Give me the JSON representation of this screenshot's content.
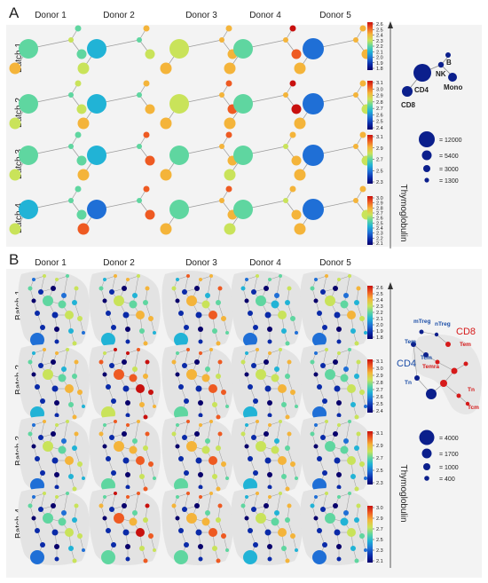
{
  "panelA": {
    "letter": "A",
    "donors": [
      "Donor 1",
      "Donor 2",
      "Donor 3",
      "Donor 4",
      "Donor 5"
    ],
    "batches": [
      "Batch 1",
      "Batch 2",
      "Batch 3",
      "Batch 4"
    ],
    "colorbar_ticks": [
      [
        "2.6",
        "2.5",
        "2.4",
        "2.3",
        "2.2",
        "2.1",
        "2.0",
        "1.9",
        "1.8"
      ],
      [
        "3.1",
        "3.0",
        "2.9",
        "2.8",
        "2.7",
        "2.6",
        "2.5",
        "2.4"
      ],
      [
        "3.1",
        "2.9",
        "2.7",
        "2.5",
        "2.3"
      ],
      [
        "3.0",
        "2.9",
        "2.8",
        "2.7",
        "2.6",
        "2.5",
        "2.4",
        "2.3",
        "2.2",
        "2.1"
      ]
    ],
    "legend_labels": {
      "b": "B",
      "nk": "NK",
      "cd4": "CD4",
      "cd8": "CD8",
      "mono": "Mono"
    },
    "size_legend": [
      "= 12000",
      "= 5400",
      "= 3000",
      "= 1300"
    ]
  },
  "panelB": {
    "letter": "B",
    "donors": [
      "Donor 1",
      "Donor 2",
      "Donor 3",
      "Donor 4",
      "Donor 5"
    ],
    "batches": [
      "Batch 1",
      "Batch 2",
      "Batch 3",
      "Batch 4"
    ],
    "colorbar_ticks": [
      [
        "2.6",
        "2.5",
        "2.4",
        "2.3",
        "2.2",
        "2.1",
        "2.0",
        "1.9",
        "1.8"
      ],
      [
        "3.1",
        "3.0",
        "2.9",
        "2.8",
        "2.7",
        "2.6",
        "2.5",
        "2.4"
      ],
      [
        "3.1",
        "2.9",
        "2.7",
        "2.5",
        "2.3"
      ],
      [
        "3.0",
        "2.9",
        "2.7",
        "2.5",
        "2.3",
        "2.1"
      ]
    ],
    "legend_labels": {
      "mtreg": "mTreg",
      "ntreg": "nTreg",
      "cd8": "CD8",
      "tem4": "Tem",
      "tem8": "Tem",
      "tcm4": "Tcm",
      "temra": "Temra",
      "cd4": "CD4",
      "tn4": "Tn",
      "tn8": "Tn",
      "tcm8": "Tcm"
    },
    "size_legend": [
      "= 4000",
      "= 1700",
      "= 1000",
      "= 400"
    ]
  },
  "colorbar_label": "Thymoglobulin",
  "colors": {
    "ramp": [
      "#08006b",
      "#0a2aa8",
      "#1f6fd6",
      "#21b3d6",
      "#5fd6a0",
      "#c9e35a",
      "#f4b43a",
      "#ee5a22",
      "#c8100e"
    ],
    "panel_bg": "#f3f3f3",
    "node_dark": "#0b1f8c",
    "label_blue": "#1d4fa8",
    "label_red": "#d61a1a"
  },
  "panelA_node_values": [
    [
      [
        0.45,
        0.6,
        0.7,
        0.85,
        0.65
      ],
      [
        0.55,
        0.5,
        0.6,
        0.55,
        0.65
      ],
      [
        0.45,
        0.3,
        0.55,
        0.6,
        0.6
      ],
      [
        0.35,
        0.25,
        0.5,
        0.4,
        0.15
      ]
    ],
    [
      [
        0.55,
        0.7,
        0.8,
        0.95,
        0.6
      ],
      [
        0.5,
        0.6,
        0.6,
        0.55,
        0.6
      ],
      [
        0.3,
        0.3,
        0.5,
        0.55,
        0.55
      ],
      [
        0.4,
        0.3,
        0.5,
        0.4,
        0.15
      ]
    ],
    [
      [
        0.4,
        0.8,
        0.75,
        0.7,
        0.6
      ],
      [
        0.45,
        0.6,
        0.6,
        0.5,
        0.6
      ],
      [
        0.35,
        0.3,
        0.5,
        0.45,
        0.5
      ],
      [
        0.35,
        0.3,
        0.45,
        0.4,
        0.1
      ]
    ],
    [
      [
        0.4,
        0.8,
        0.75,
        0.7,
        0.6
      ],
      [
        0.5,
        0.7,
        0.6,
        0.5,
        0.6
      ],
      [
        0.35,
        0.3,
        0.5,
        0.45,
        0.5
      ],
      [
        0.3,
        0.2,
        0.4,
        0.35,
        0.1
      ]
    ]
  ]
}
